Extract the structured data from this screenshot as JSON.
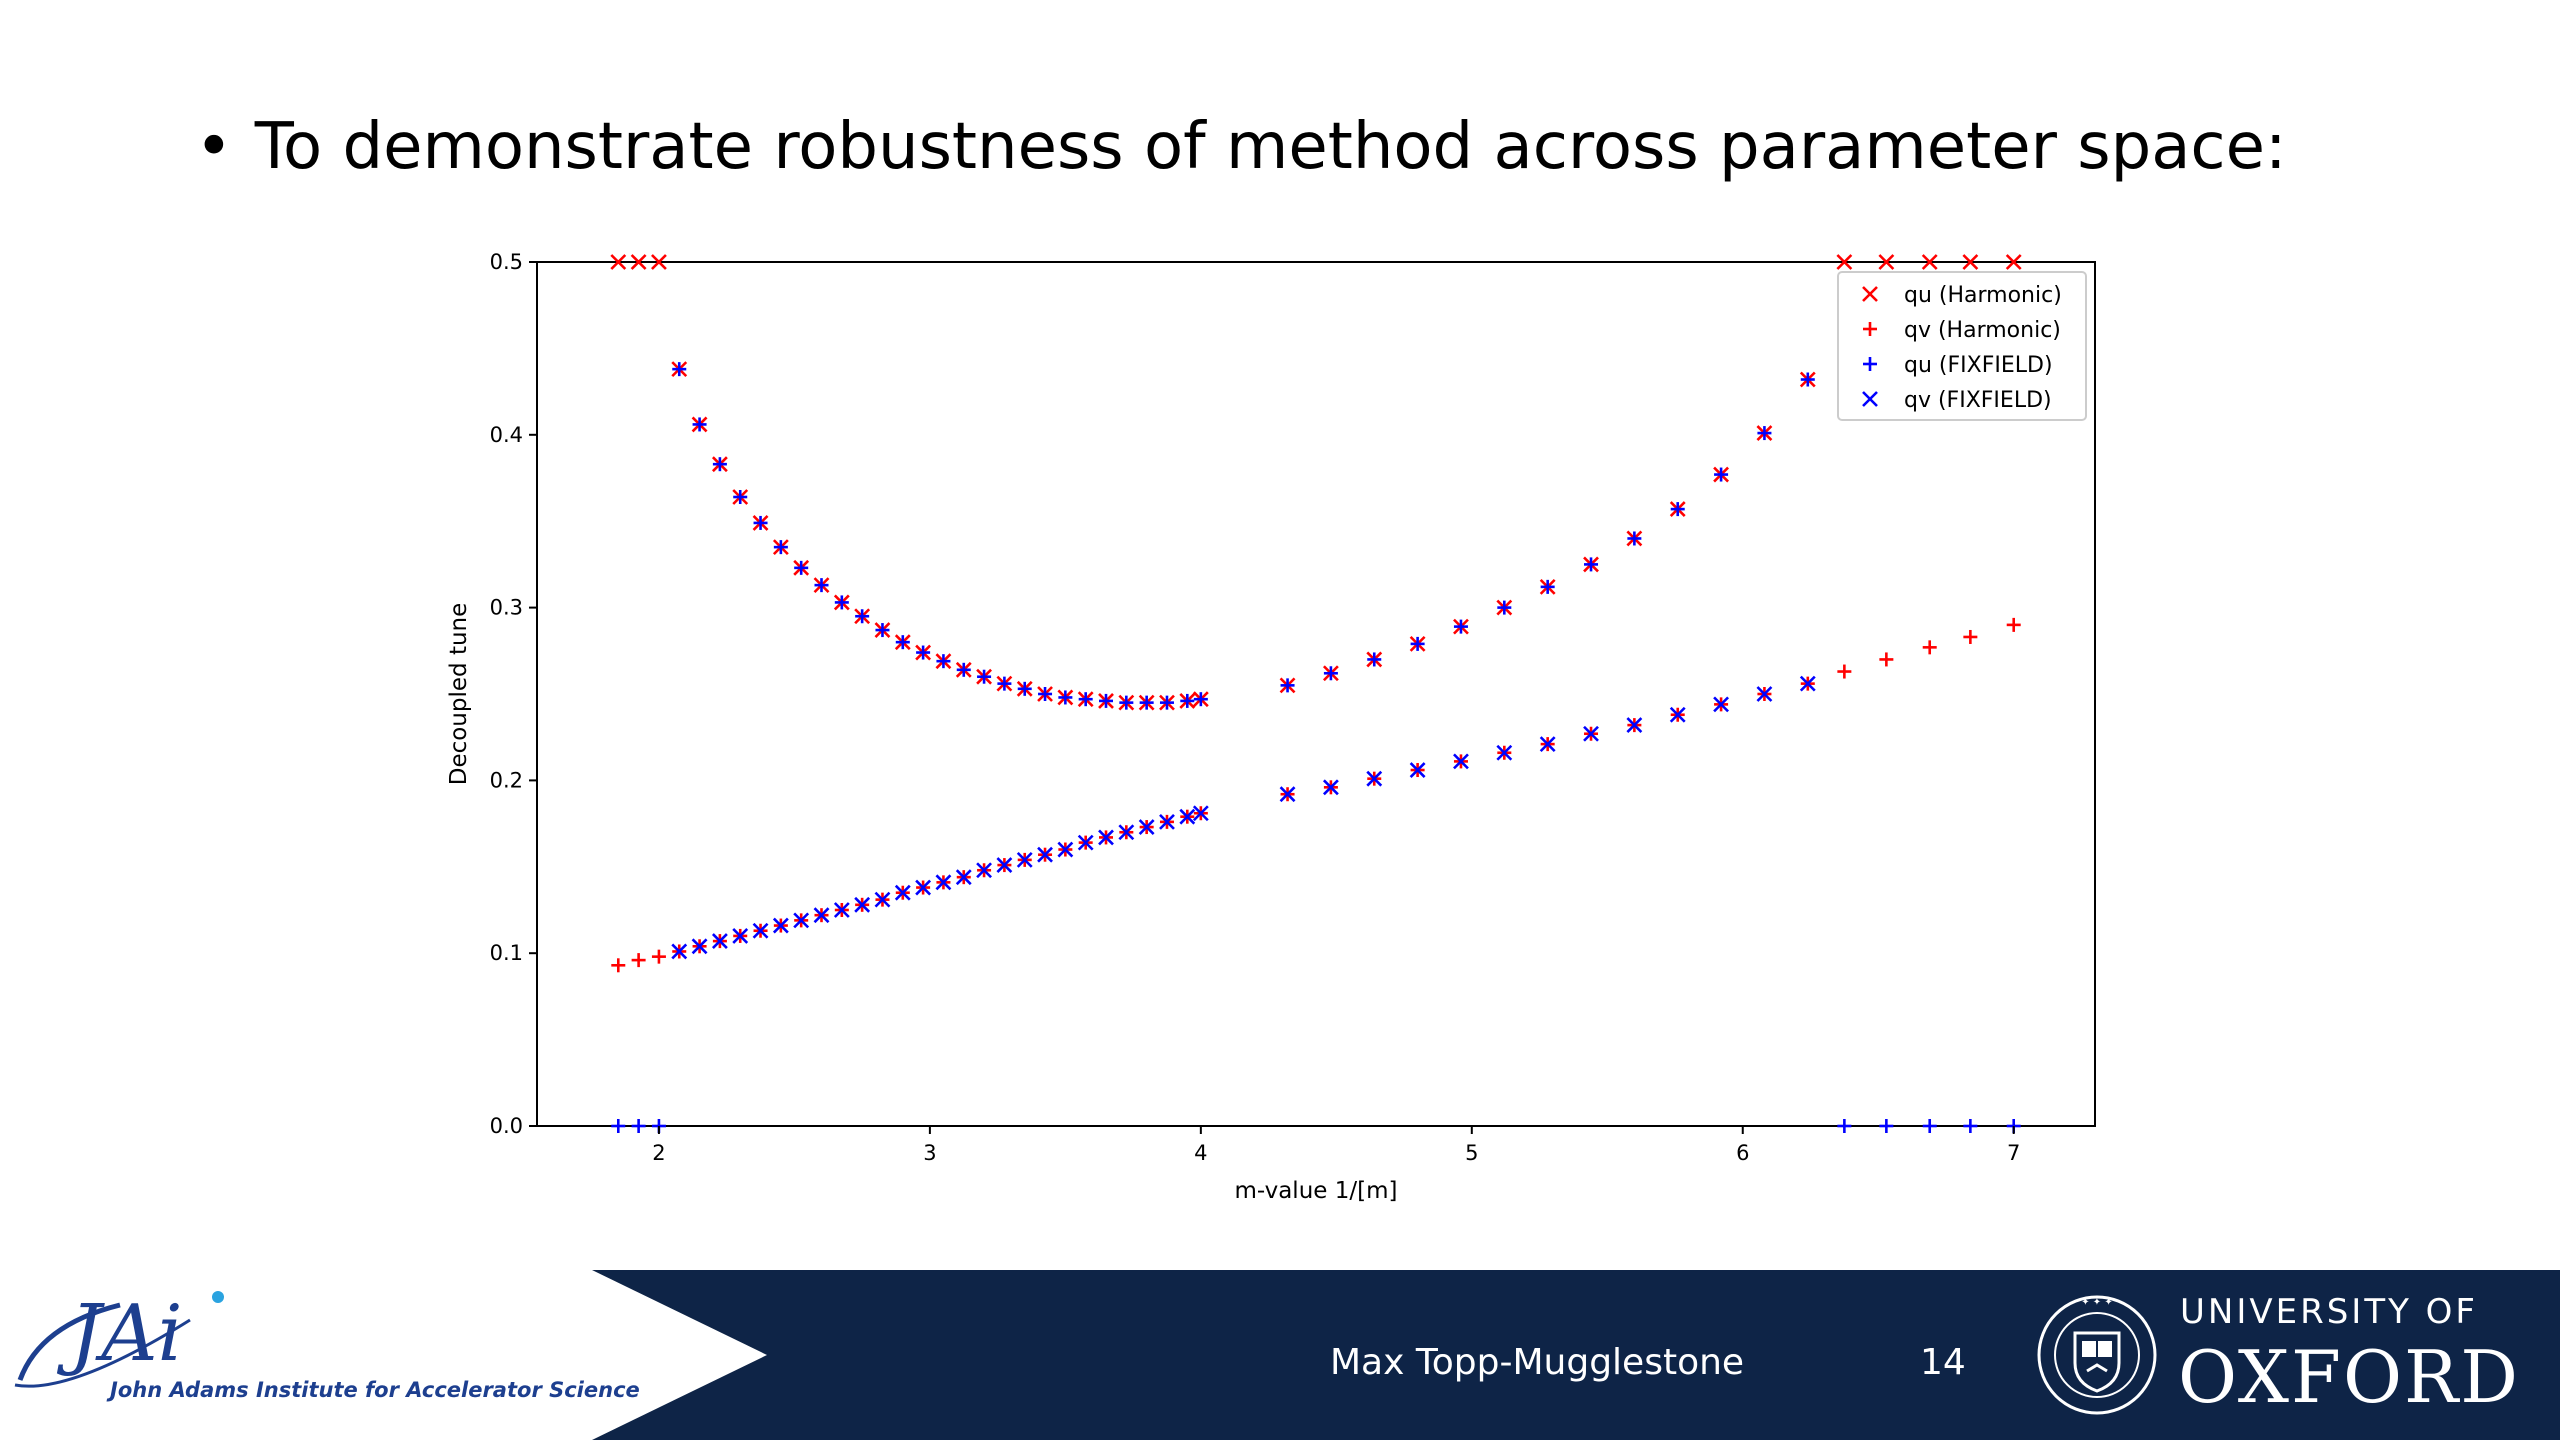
{
  "slide": {
    "bullet": "•",
    "title": "To demonstrate robustness of method across parameter space:"
  },
  "footer": {
    "author": "Max Topp-Mugglestone",
    "page_number": "14",
    "jai_logo_text": "JAi",
    "jai_institute": "John Adams Institute for Accelerator Science",
    "oxford_line1": "UNIVERSITY OF",
    "oxford_line2": "OXFORD",
    "colors": {
      "band": "#0e2447",
      "jai_blue": "#1d3f8f"
    }
  },
  "chart_data": {
    "type": "scatter",
    "xlabel": "m-value 1/[m]",
    "ylabel": "Decoupled tune",
    "xlim": [
      1.55,
      7.3
    ],
    "ylim": [
      0.0,
      0.5
    ],
    "xticks": [
      "2",
      "3",
      "4",
      "5",
      "6",
      "7"
    ],
    "yticks": [
      "0.0",
      "0.1",
      "0.2",
      "0.3",
      "0.4",
      "0.5"
    ],
    "legend_position": "top-right",
    "colors": {
      "harmonic": "#ff0000",
      "fixfield": "#0000ff"
    },
    "series": [
      {
        "name": "qu (Harmonic)",
        "marker": "x",
        "color": "#ff0000",
        "x": [
          1.85,
          1.925,
          2.0,
          2.075,
          2.15,
          2.225,
          2.3,
          2.375,
          2.45,
          2.525,
          2.6,
          2.675,
          2.75,
          2.825,
          2.9,
          2.975,
          3.05,
          3.125,
          3.2,
          3.275,
          3.35,
          3.425,
          3.5,
          3.575,
          3.65,
          3.725,
          3.8,
          3.875,
          3.95,
          4.0,
          4.32,
          4.48,
          4.64,
          4.8,
          4.96,
          5.12,
          5.28,
          5.44,
          5.6,
          5.76,
          5.92,
          6.08,
          6.24,
          6.375,
          6.53,
          6.69,
          6.84,
          7.0
        ],
        "y": [
          0.5,
          0.5,
          0.5,
          0.438,
          0.406,
          0.383,
          0.364,
          0.349,
          0.335,
          0.323,
          0.313,
          0.303,
          0.295,
          0.287,
          0.28,
          0.274,
          0.269,
          0.264,
          0.26,
          0.256,
          0.253,
          0.25,
          0.248,
          0.247,
          0.246,
          0.245,
          0.245,
          0.245,
          0.246,
          0.247,
          0.255,
          0.262,
          0.27,
          0.279,
          0.289,
          0.3,
          0.312,
          0.325,
          0.34,
          0.357,
          0.377,
          0.401,
          0.432,
          0.5,
          0.5,
          0.5,
          0.5,
          0.5
        ]
      },
      {
        "name": "qv (Harmonic)",
        "marker": "+",
        "color": "#ff0000",
        "x": [
          1.85,
          1.925,
          2.0,
          2.075,
          2.15,
          2.225,
          2.3,
          2.375,
          2.45,
          2.525,
          2.6,
          2.675,
          2.75,
          2.825,
          2.9,
          2.975,
          3.05,
          3.125,
          3.2,
          3.275,
          3.35,
          3.425,
          3.5,
          3.575,
          3.65,
          3.725,
          3.8,
          3.875,
          3.95,
          4.0,
          4.32,
          4.48,
          4.64,
          4.8,
          4.96,
          5.12,
          5.28,
          5.44,
          5.6,
          5.76,
          5.92,
          6.08,
          6.24,
          6.375,
          6.53,
          6.69,
          6.84,
          7.0
        ],
        "y": [
          0.093,
          0.096,
          0.098,
          0.101,
          0.104,
          0.107,
          0.11,
          0.113,
          0.116,
          0.119,
          0.122,
          0.125,
          0.128,
          0.131,
          0.135,
          0.138,
          0.141,
          0.144,
          0.148,
          0.151,
          0.154,
          0.157,
          0.16,
          0.164,
          0.167,
          0.17,
          0.173,
          0.176,
          0.179,
          0.181,
          0.192,
          0.196,
          0.201,
          0.206,
          0.211,
          0.216,
          0.221,
          0.227,
          0.232,
          0.238,
          0.244,
          0.25,
          0.256,
          0.263,
          0.27,
          0.277,
          0.283,
          0.29
        ]
      },
      {
        "name": "qu (FIXFIELD)",
        "marker": "+",
        "color": "#0000ff",
        "x": [
          1.85,
          1.925,
          2.0,
          2.075,
          2.15,
          2.225,
          2.3,
          2.375,
          2.45,
          2.525,
          2.6,
          2.675,
          2.75,
          2.825,
          2.9,
          2.975,
          3.05,
          3.125,
          3.2,
          3.275,
          3.35,
          3.425,
          3.5,
          3.575,
          3.65,
          3.725,
          3.8,
          3.875,
          3.95,
          4.0,
          4.32,
          4.48,
          4.64,
          4.8,
          4.96,
          5.12,
          5.28,
          5.44,
          5.6,
          5.76,
          5.92,
          6.08,
          6.24,
          6.375,
          6.53,
          6.69,
          6.84,
          7.0
        ],
        "y": [
          0.0,
          0.0,
          0.0,
          0.438,
          0.406,
          0.383,
          0.364,
          0.349,
          0.335,
          0.323,
          0.313,
          0.303,
          0.295,
          0.287,
          0.28,
          0.274,
          0.269,
          0.264,
          0.26,
          0.256,
          0.253,
          0.25,
          0.248,
          0.247,
          0.246,
          0.245,
          0.245,
          0.245,
          0.246,
          0.247,
          0.255,
          0.262,
          0.27,
          0.279,
          0.289,
          0.3,
          0.312,
          0.325,
          0.34,
          0.357,
          0.377,
          0.401,
          0.432,
          0.0,
          0.0,
          0.0,
          0.0,
          0.0
        ]
      },
      {
        "name": "qv (FIXFIELD)",
        "marker": "x",
        "color": "#0000ff",
        "x": [
          2.075,
          2.15,
          2.225,
          2.3,
          2.375,
          2.45,
          2.525,
          2.6,
          2.675,
          2.75,
          2.825,
          2.9,
          2.975,
          3.05,
          3.125,
          3.2,
          3.275,
          3.35,
          3.425,
          3.5,
          3.575,
          3.65,
          3.725,
          3.8,
          3.875,
          3.95,
          4.0,
          4.32,
          4.48,
          4.64,
          4.8,
          4.96,
          5.12,
          5.28,
          5.44,
          5.6,
          5.76,
          5.92,
          6.08,
          6.24
        ],
        "y": [
          0.101,
          0.104,
          0.107,
          0.11,
          0.113,
          0.116,
          0.119,
          0.122,
          0.125,
          0.128,
          0.131,
          0.135,
          0.138,
          0.141,
          0.144,
          0.148,
          0.151,
          0.154,
          0.157,
          0.16,
          0.164,
          0.167,
          0.17,
          0.173,
          0.176,
          0.179,
          0.181,
          0.192,
          0.196,
          0.201,
          0.206,
          0.211,
          0.216,
          0.221,
          0.227,
          0.232,
          0.238,
          0.244,
          0.25,
          0.256
        ]
      }
    ]
  }
}
